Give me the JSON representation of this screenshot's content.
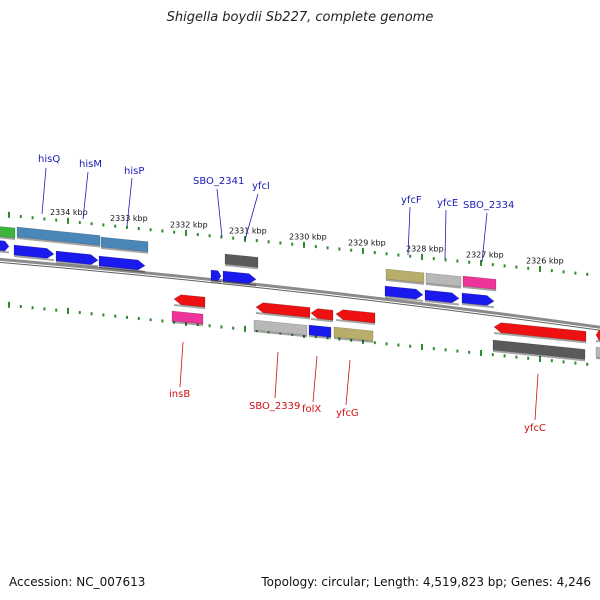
{
  "title": "Shigella boydii Sb227, complete genome",
  "footer": {
    "accession": "Accession: NC_007613",
    "summary": "Topology: circular; Length: 4,519,823 bp; Genes: 4,246"
  },
  "colors": {
    "forward_label": "#1a1ab4",
    "reverse_label": "#cc1111",
    "tick": "#2e8b2e",
    "backbone": "#888888",
    "cds_forward": "#1a1aee",
    "cds_reverse": "#ee1111",
    "rna": "#ee3399",
    "gray": "#b8b8b8",
    "dark_gray": "#5a5a5a",
    "olive": "#b8ad6a",
    "steel": "#4a86b8",
    "green": "#3ab43a"
  },
  "scale_labels": [
    "2334 kbp",
    "2333 kbp",
    "2332 kbp",
    "2331 kbp",
    "2330 kbp",
    "2329 kbp",
    "2328 kbp",
    "2327 kbp",
    "2326 kbp"
  ],
  "forward_labels": [
    "hisQ",
    "hisM",
    "hisP",
    "SBO_2341",
    "yfcI",
    "yfcF",
    "yfcE",
    "SBO_2334"
  ],
  "reverse_labels": [
    "insB",
    "SBO_2339",
    "folX",
    "yfcG",
    "yfcC"
  ]
}
